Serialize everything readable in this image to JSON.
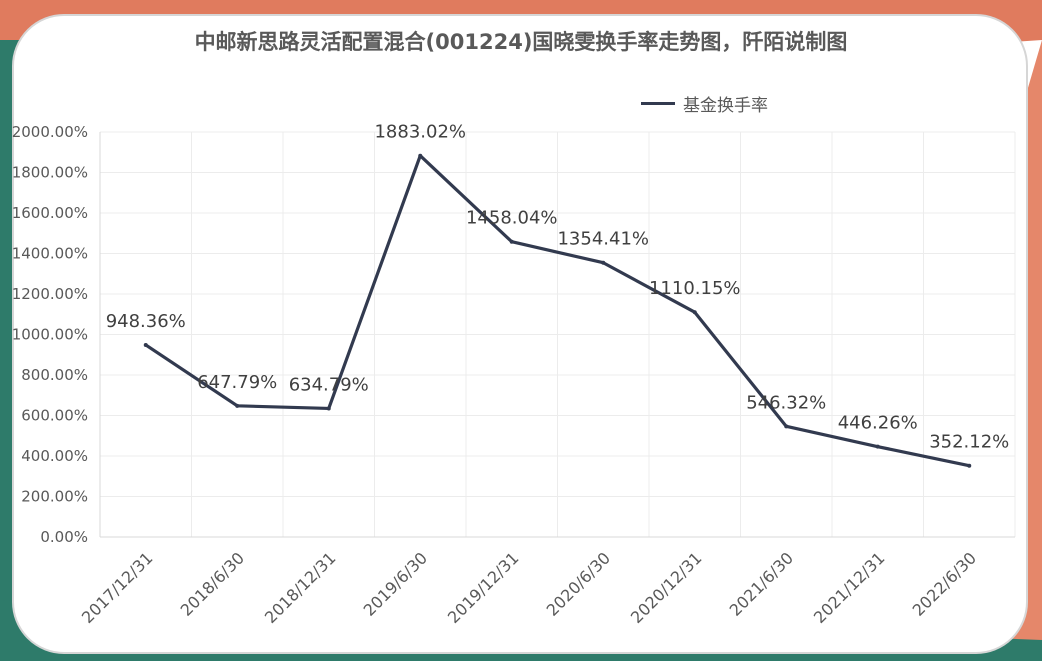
{
  "colors": {
    "corner_top_left": "#e07b5e",
    "corner_green": "#2e7b6a",
    "corner_bottom_right": "#e5876a",
    "line": "#323a4f",
    "grid": "#ececec"
  },
  "chart_data": {
    "type": "line",
    "title": "中邮新思路灵活配置混合(001224)国晓雯换手率走势图，阡陌说制图",
    "categories": [
      "2017/12/31",
      "2018/6/30",
      "2018/12/31",
      "2019/6/30",
      "2019/12/31",
      "2020/6/30",
      "2020/12/31",
      "2021/6/30",
      "2021/12/31",
      "2022/6/30"
    ],
    "series": [
      {
        "name": "基金换手率",
        "values": [
          948.36,
          647.79,
          634.79,
          1883.02,
          1458.04,
          1354.41,
          1110.15,
          546.32,
          446.26,
          352.12
        ],
        "labels": [
          "948.36%",
          "647.79%",
          "634.79%",
          "1883.02%",
          "1458.04%",
          "1354.41%",
          "1110.15%",
          "546.32%",
          "446.26%",
          "352.12%"
        ]
      }
    ],
    "y_ticks": [
      "0.00%",
      "200.00%",
      "400.00%",
      "600.00%",
      "800.00%",
      "1000.00%",
      "1200.00%",
      "1400.00%",
      "1600.00%",
      "1800.00%",
      "2000.00%"
    ],
    "ylim": [
      0,
      2000
    ],
    "legend_position": "top-right",
    "grid": true
  }
}
